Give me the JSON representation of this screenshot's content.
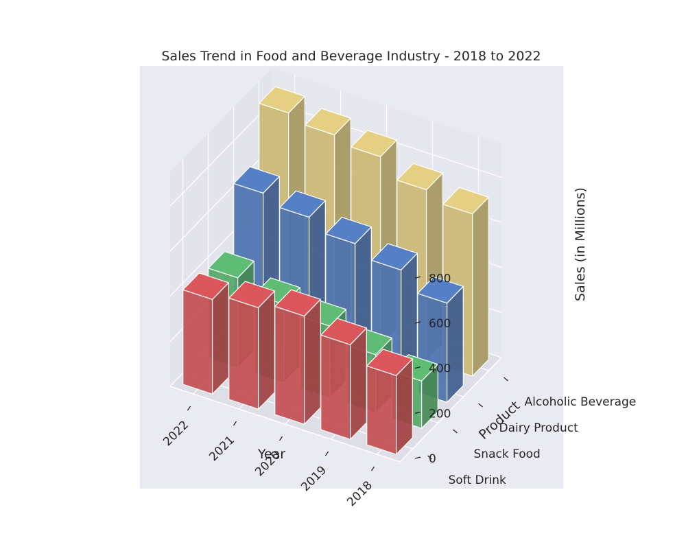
{
  "chart_data": {
    "type": "bar",
    "title": "Sales Trend in Food and Beverage Industry - 2018 to 2022",
    "xlabel": "Year",
    "ylabel": "Product",
    "zlabel": "Sales (in Millions)",
    "categories": [
      "2022",
      "2021",
      "2020",
      "2019",
      "2018"
    ],
    "series": [
      {
        "name": "Soft Drink",
        "values": [
          420,
          450,
          480,
          420,
          350
        ],
        "color": "#c44e52"
      },
      {
        "name": "Snack Food",
        "values": [
          400,
          350,
          320,
          260,
          210
        ],
        "color": "#55a868"
      },
      {
        "name": "Dairy Product",
        "values": [
          660,
          620,
          570,
          520,
          440
        ],
        "color": "#4c72b0"
      },
      {
        "name": "Alcoholic Beverage",
        "values": [
          900,
          870,
          840,
          760,
          720
        ],
        "color": "#ccb974"
      }
    ],
    "zticks": [
      0,
      200,
      400,
      600,
      800
    ],
    "zlim": [
      0,
      950
    ],
    "background_color": "#eaeaf2",
    "grid": true
  }
}
